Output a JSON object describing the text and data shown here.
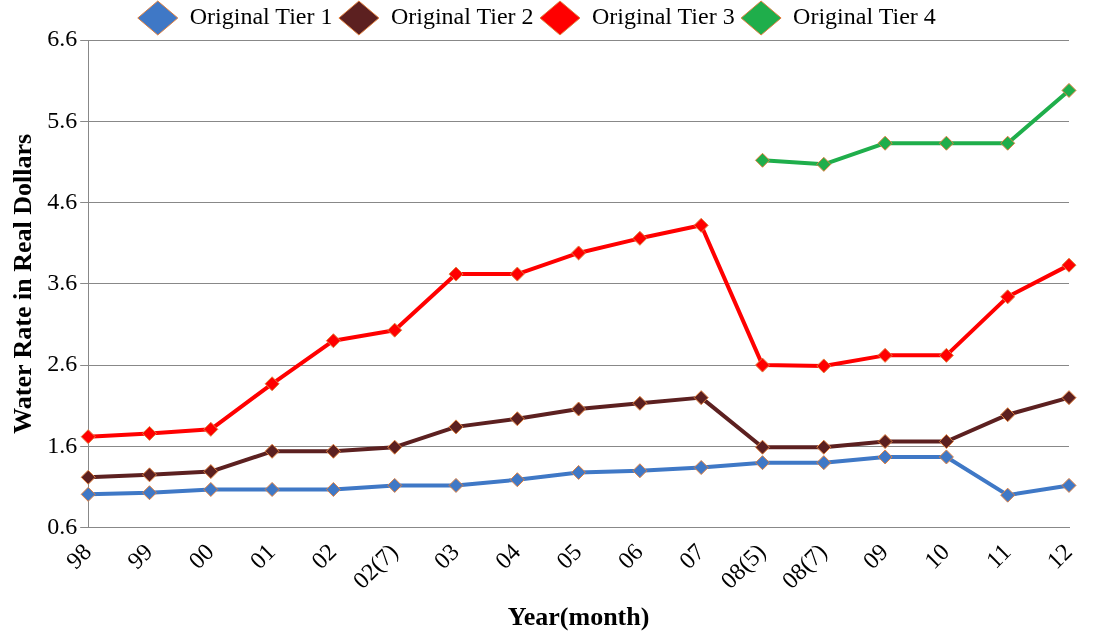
{
  "chart_data": {
    "type": "line",
    "xlabel": "Year(month)",
    "ylabel": "Water Rate in Real Dollars",
    "categories": [
      "98",
      "99",
      "00",
      "01",
      "02",
      "02(7)",
      "03",
      "04",
      "05",
      "06",
      "07",
      "08(5)",
      "08(7)",
      "09",
      "10",
      "11",
      "12"
    ],
    "series": [
      {
        "name": "Original Tier 1",
        "color": "#3f78c6",
        "values": [
          1.01,
          1.03,
          1.07,
          1.07,
          1.07,
          1.12,
          1.12,
          1.19,
          1.28,
          1.3,
          1.34,
          1.4,
          1.4,
          1.47,
          1.47,
          1.0,
          1.12
        ]
      },
      {
        "name": "Original Tier 2",
        "color": "#5c2020",
        "values": [
          1.22,
          1.25,
          1.29,
          1.54,
          1.54,
          1.59,
          1.84,
          1.94,
          2.06,
          2.13,
          2.2,
          1.59,
          1.59,
          1.66,
          1.66,
          1.99,
          2.2
        ]
      },
      {
        "name": "Original Tier 3",
        "color": "#ff0000",
        "values": [
          1.72,
          1.76,
          1.81,
          2.37,
          2.9,
          3.03,
          3.72,
          3.72,
          3.98,
          4.16,
          4.32,
          2.6,
          2.59,
          2.72,
          2.72,
          3.44,
          3.83
        ]
      },
      {
        "name": "Original Tier 4",
        "color": "#1fae4b",
        "values": [
          null,
          null,
          null,
          null,
          null,
          null,
          null,
          null,
          null,
          null,
          null,
          5.12,
          5.07,
          5.33,
          5.33,
          5.33,
          5.98
        ]
      }
    ],
    "ylim": [
      0.6,
      6.6
    ],
    "yticks": [
      0.6,
      1.6,
      2.6,
      3.6,
      4.6,
      5.6,
      6.6
    ],
    "grid": "y",
    "legend": "top",
    "marker": "diamond",
    "line_style": "solid"
  }
}
